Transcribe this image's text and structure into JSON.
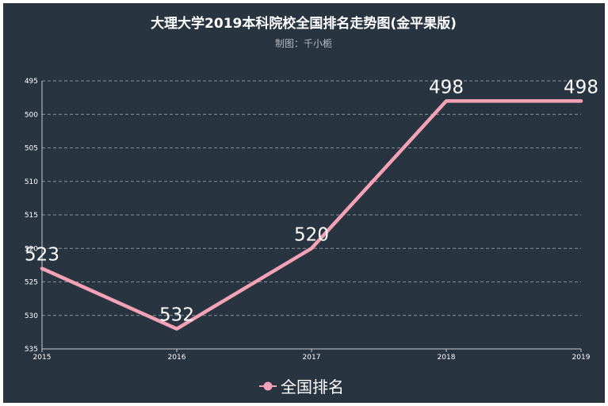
{
  "chart_data": {
    "type": "line",
    "title": "大理大学2019本科院校全国排名走势图(金平果版)",
    "subtitle": "制图：千小栀",
    "categories": [
      "2015",
      "2016",
      "2017",
      "2018",
      "2019"
    ],
    "series": [
      {
        "name": "全国排名",
        "values": [
          523,
          532,
          520,
          498,
          498
        ]
      }
    ],
    "data_labels": [
      "523",
      "532",
      "520",
      "498",
      "498"
    ],
    "y_ticks": [
      "495",
      "500",
      "505",
      "510",
      "515",
      "520",
      "525",
      "530",
      "535"
    ],
    "ylim": [
      495,
      535
    ],
    "y_inverted": true,
    "grid": true,
    "legend_position": "bottom-center",
    "colors": {
      "background": "#293441",
      "series": "#f4a3b7"
    }
  }
}
